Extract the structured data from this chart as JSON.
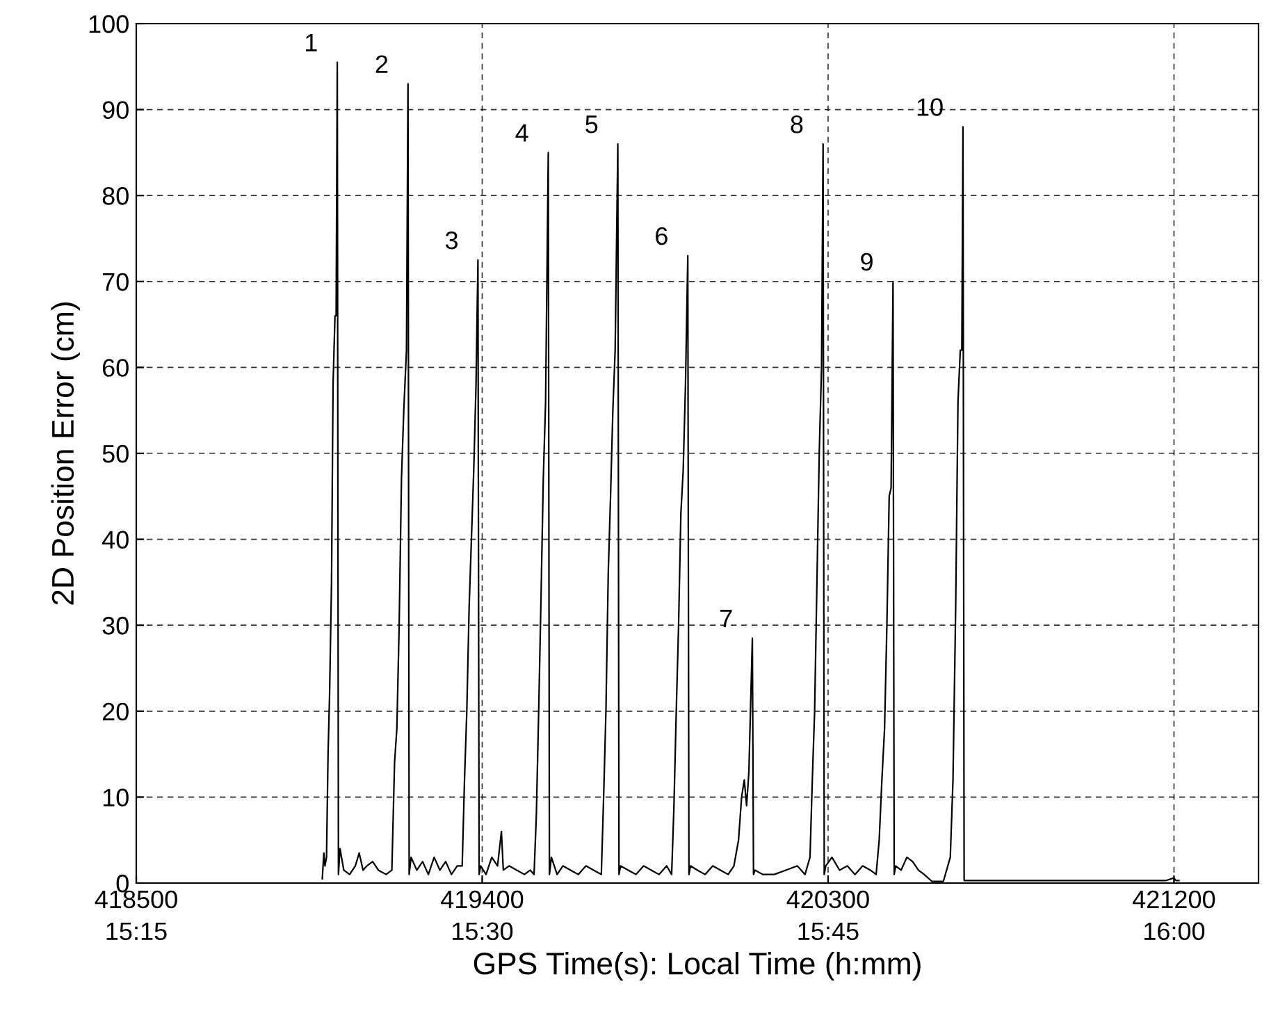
{
  "chart_data": {
    "type": "line",
    "xlabel": "GPS Time(s): Local Time (h:mm)",
    "ylabel": "2D Position Error (cm)",
    "xlim": [
      418500,
      421420
    ],
    "ylim": [
      0,
      100
    ],
    "xticks": [
      418500,
      419400,
      420300,
      421200
    ],
    "x2lim": [
      15.25,
      16.0611
    ],
    "x2ticks": [
      {
        "value": 15.25,
        "label": "15:15"
      },
      {
        "value": 15.5,
        "label": "15:30"
      },
      {
        "value": 15.75,
        "label": "15:45"
      },
      {
        "value": 16.0,
        "label": "16:00"
      }
    ],
    "yticks": [
      0,
      10,
      20,
      30,
      40,
      50,
      60,
      70,
      80,
      90,
      100
    ],
    "grid": true,
    "line_style": "solid",
    "marker": "none",
    "series": [
      {
        "color": "#000000",
        "x": [
          418984,
          418988,
          418991,
          418995,
          418999,
          419003,
          419008,
          419012,
          419017,
          419020,
          419023,
          419026,
          419030,
          419040,
          419055,
          419070,
          419080,
          419090,
          419100,
          419115,
          419130,
          419150,
          419165,
          419172,
          419178,
          419184,
          419190,
          419196,
          419203,
          419207,
          419210,
          419215,
          419230,
          419245,
          419260,
          419275,
          419290,
          419305,
          419320,
          419335,
          419348,
          419354,
          419360,
          419366,
          419372,
          419378,
          419384,
          419389,
          419392,
          419396,
          419410,
          419425,
          419440,
          419450,
          419455,
          419470,
          419490,
          419510,
          419525,
          419535,
          419541,
          419547,
          419553,
          419559,
          419565,
          419572,
          419575,
          419580,
          419595,
          419610,
          419630,
          419650,
          419670,
          419690,
          419710,
          419716,
          419722,
          419728,
          419734,
          419740,
          419746,
          419753,
          419756,
          419760,
          419780,
          419800,
          419820,
          419840,
          419860,
          419880,
          419893,
          419899,
          419905,
          419911,
          419917,
          419923,
          419929,
          419935,
          419938,
          419942,
          419960,
          419980,
          420000,
          420020,
          420040,
          420055,
          420067,
          420075,
          420082,
          420088,
          420094,
          420098,
          420103,
          420106,
          420110,
          420130,
          420160,
          420190,
          420220,
          420240,
          420253,
          420259,
          420265,
          420271,
          420277,
          420283,
          420287,
          420290,
          420294,
          420310,
          420330,
          420350,
          420370,
          420390,
          420410,
          420425,
          420433,
          420440,
          420447,
          420453,
          420459,
          420464,
          420469,
          420472,
          420476,
          420490,
          420505,
          420520,
          420535,
          420550,
          420570,
          420600,
          420618,
          420625,
          420632,
          420638,
          420644,
          420648,
          420651,
          420654,
          420658,
          420700,
          420800,
          420900,
          421000,
          421100,
          421180,
          421200,
          421205,
          421213
        ],
        "values": [
          0.5,
          3.5,
          2,
          3,
          15,
          22,
          35,
          58,
          66,
          66,
          95.5,
          1,
          4,
          1.5,
          1,
          2,
          3.5,
          1.5,
          2,
          2.5,
          1.5,
          1,
          1.5,
          14,
          18,
          30,
          47,
          55,
          62,
          93,
          1,
          3,
          1.5,
          2.5,
          1,
          3,
          1.5,
          2.5,
          1,
          2,
          2,
          12,
          20,
          32,
          40,
          48,
          58,
          72.5,
          1,
          2,
          1,
          3,
          2,
          6,
          1.5,
          2,
          1.5,
          1,
          1.5,
          1,
          8,
          20,
          33,
          47,
          56,
          85,
          1,
          3,
          1,
          2,
          1.5,
          1,
          2,
          1.5,
          1,
          10,
          20,
          36,
          45,
          55,
          62,
          86,
          1,
          2,
          1.5,
          1,
          2,
          1.5,
          1,
          2,
          1,
          9,
          20,
          30,
          43,
          48,
          58,
          73,
          1,
          2,
          1.5,
          1,
          2,
          1.5,
          1,
          2,
          5,
          10,
          12,
          9,
          13,
          20,
          28.5,
          1,
          1.5,
          1,
          1,
          1.5,
          2,
          1,
          3,
          12,
          20,
          35,
          50,
          60,
          86,
          1,
          2,
          3,
          1.5,
          2,
          1,
          2,
          1.5,
          1,
          5,
          12,
          18,
          30,
          45,
          46,
          70,
          1,
          2,
          1.5,
          3,
          2.5,
          1.5,
          1,
          0.2,
          0.2,
          3,
          12,
          32,
          56,
          62,
          62,
          88,
          0.3,
          0.3,
          0.3,
          0.3,
          0.3,
          0.3,
          0.3,
          0.3,
          0.6,
          0.3,
          0.3
        ]
      }
    ],
    "annotations": [
      {
        "text": "1",
        "x": 419023,
        "y": 95.5
      },
      {
        "text": "2",
        "x": 419207,
        "y": 93
      },
      {
        "text": "3",
        "x": 419389,
        "y": 72.5
      },
      {
        "text": "4",
        "x": 419572,
        "y": 85
      },
      {
        "text": "5",
        "x": 419753,
        "y": 86
      },
      {
        "text": "6",
        "x": 419935,
        "y": 73
      },
      {
        "text": "7",
        "x": 420103,
        "y": 28.5
      },
      {
        "text": "8",
        "x": 420287,
        "y": 86
      },
      {
        "text": "9",
        "x": 420469,
        "y": 70
      },
      {
        "text": "10",
        "x": 420651,
        "y": 88
      }
    ]
  }
}
